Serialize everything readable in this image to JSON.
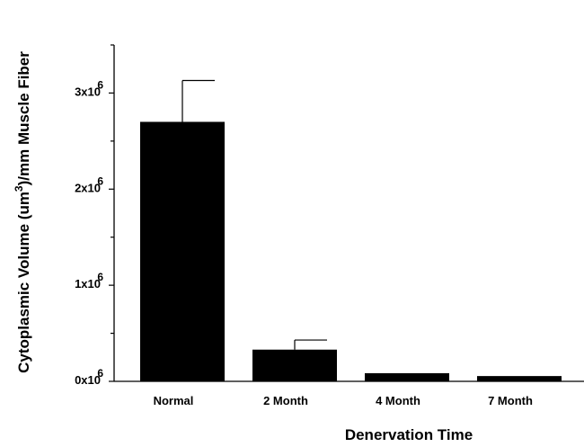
{
  "chart_data": {
    "type": "bar",
    "categories": [
      "Normal",
      "2 Month",
      "4 Month",
      "7 Month"
    ],
    "values": [
      2700000,
      330000,
      85000,
      55000
    ],
    "error": [
      430000,
      100000,
      0,
      0
    ],
    "xlabel": "Denervation Time",
    "ylabel": {
      "prefix": "Cytoplasmic Volume (um",
      "sup": "3",
      "suffix": ")/mm Muscle Fiber"
    },
    "ylim": [
      0,
      3500000
    ],
    "yticks": [
      {
        "value": 0,
        "base": "0x10",
        "exp": "6"
      },
      {
        "value": 1000000,
        "base": "1x10",
        "exp": "6"
      },
      {
        "value": 2000000,
        "base": "2x10",
        "exp": "6"
      },
      {
        "value": 3000000,
        "base": "3x10",
        "exp": "6"
      }
    ],
    "minor_yticks": [
      500000,
      1500000,
      2500000,
      3500000
    ],
    "bar_color": "#000000",
    "grid": false
  }
}
